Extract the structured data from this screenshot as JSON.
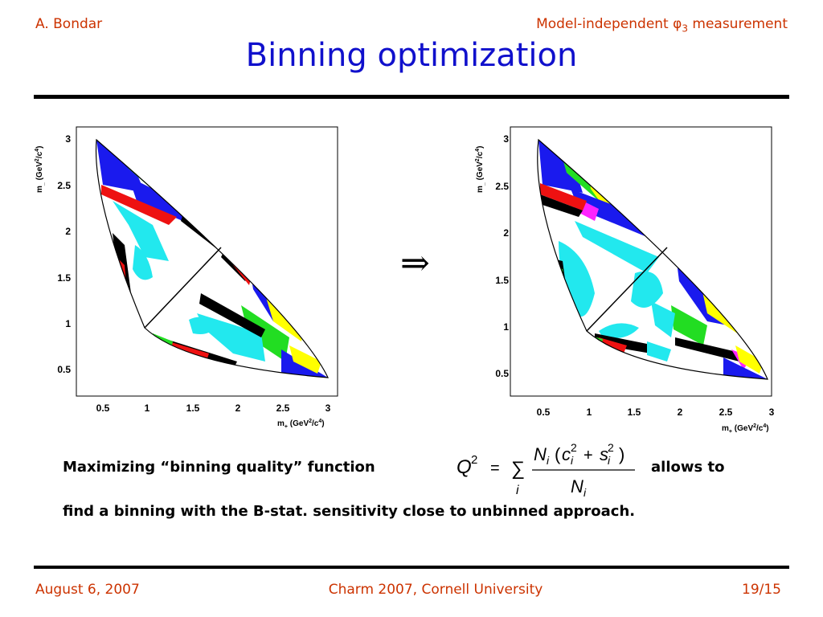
{
  "header": {
    "author": "A. Bondar",
    "topic_prefix": "Model-independent φ",
    "topic_sub": "3",
    "topic_suffix": " measurement"
  },
  "title": "Binning optimization",
  "arrow": "⇒",
  "plots": {
    "x_ticks": [
      "0.5",
      "1",
      "1.5",
      "2",
      "2.5",
      "3"
    ],
    "y_ticks": [
      "3",
      "2.5",
      "2",
      "1.5",
      "1",
      "0.5"
    ],
    "xlabel_main": "m",
    "xlabel_sub": "+",
    "xlabel_rest": " (GeV",
    "xlabel_unit_end": "/c",
    "ylabel_main": "m",
    "ylabel_sub": "_",
    "ylabel_rest": " (GeV",
    "ylabel_unit_end": "/c",
    "sup2": "2",
    "sup4": "4",
    "close": ")",
    "colors": {
      "blue": "#1a1aee",
      "green": "#22dd22",
      "yellow": "#ffff00",
      "cyan": "#22e8ee",
      "red": "#ee1111",
      "magenta": "#ff22ff",
      "black": "#000000"
    }
  },
  "text": {
    "line1_before": "Maximizing “binning quality” function",
    "line1_after": "allows to",
    "line2": "find a binning with the B-stat. sensitivity close to unbinned approach."
  },
  "formula": {
    "lhs": "Q",
    "lhs_exp": "2",
    "equals": "=",
    "sum": "∑",
    "index": "i",
    "num_N": "N",
    "num_open": "(",
    "num_c": "c",
    "num_plus": "+",
    "num_s": "s",
    "num_close": ")",
    "den_N": "N"
  },
  "footer": {
    "date": "August 6, 2007",
    "conference": "Charm 2007, Cornell University",
    "page": "19/15"
  }
}
